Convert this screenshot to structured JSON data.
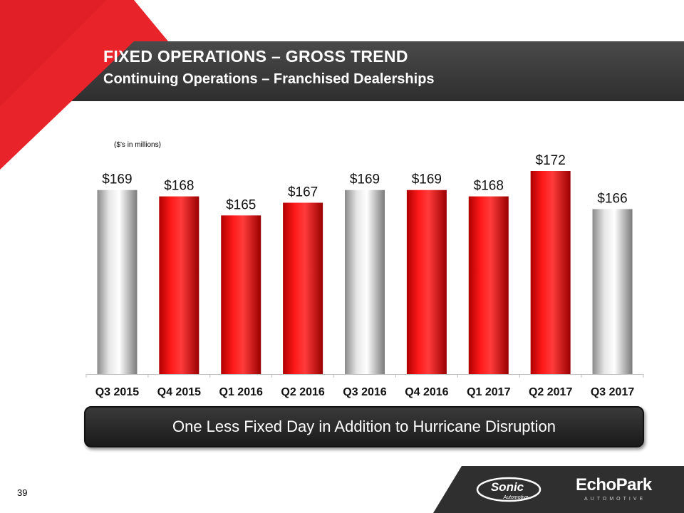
{
  "header": {
    "title": "FIXED OPERATIONS – GROSS TREND",
    "subtitle": "Continuing Operations – Franchised Dealerships"
  },
  "units_note": "($’s in millions)",
  "chart_data": {
    "type": "bar",
    "title": "FIXED OPERATIONS – GROSS TREND",
    "subtitle": "Continuing Operations – Franchised Dealerships",
    "xlabel": "",
    "ylabel": "($’s in millions)",
    "categories": [
      "Q3 2015",
      "Q4 2015",
      "Q1 2016",
      "Q2 2016",
      "Q3 2016",
      "Q4 2016",
      "Q1 2017",
      "Q2 2017",
      "Q3 2017"
    ],
    "values": [
      169,
      168,
      165,
      167,
      169,
      169,
      168,
      172,
      166
    ],
    "data_labels": [
      "$169",
      "$168",
      "$165",
      "$167",
      "$169",
      "$169",
      "$168",
      "$172",
      "$166"
    ],
    "bar_styles": [
      "silver",
      "red",
      "red",
      "red",
      "silver",
      "red",
      "red",
      "red",
      "silver"
    ],
    "ylim": [
      140,
      175
    ],
    "grid": false,
    "legend": "none"
  },
  "callout": {
    "text": "One Less Fixed Day in Addition to Hurricane Disruption"
  },
  "footer": {
    "page_number": "39",
    "logo_sonic_name": "Sonic",
    "logo_sonic_sub": "Automotive",
    "logo_echopark_name": "EchoPark",
    "logo_echopark_sub": "AUTOMOTIVE"
  },
  "colors": {
    "brand_red": "#e8232a",
    "dark_band": "#3a3a3a",
    "bar_red": "#ff0000",
    "bar_silver": "#c8c8c8"
  }
}
